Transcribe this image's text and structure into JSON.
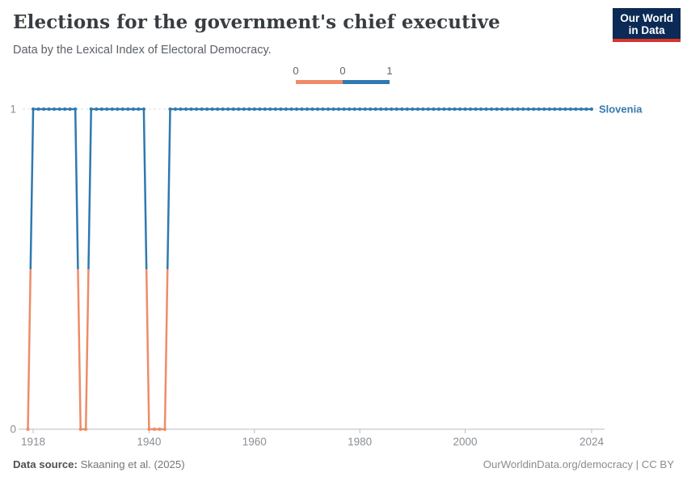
{
  "header": {
    "title": "Elections for the government's chief executive",
    "subtitle": "Data by the Lexical Index of Electoral Democracy.",
    "logo_line1": "Our World",
    "logo_line2": "in Data",
    "logo_bg": "#0b2a55",
    "logo_accent": "#d7352c"
  },
  "legend": {
    "edge_labels": [
      "0",
      "0",
      "1"
    ],
    "bin_colors": [
      "#ee8c69",
      "#2f79b0"
    ]
  },
  "chart_data": {
    "type": "line",
    "title": "Elections for the government's chief executive",
    "xlabel": "",
    "ylabel": "",
    "x_domain": [
      1916,
      2026
    ],
    "y_domain": [
      0,
      1
    ],
    "x_ticks": [
      1918,
      1940,
      1960,
      1980,
      2000,
      2024
    ],
    "y_ticks": [
      0,
      1
    ],
    "grid": "dashed line at y=1, solid axis at y=0",
    "legend_position": "top-center",
    "value_colors": {
      "0": "#ee8c69",
      "1": "#2f79b0"
    },
    "series": [
      {
        "name": "Slovenia",
        "label_color": "#3579b1",
        "segments": [
          {
            "from": 1917,
            "to": 1917,
            "value": 0
          },
          {
            "from": 1918,
            "to": 1926,
            "value": 1
          },
          {
            "from": 1927,
            "to": 1928,
            "value": 0
          },
          {
            "from": 1929,
            "to": 1939,
            "value": 1
          },
          {
            "from": 1940,
            "to": 1943,
            "value": 0
          },
          {
            "from": 1944,
            "to": 2024,
            "value": 1
          }
        ]
      }
    ],
    "axis_color": "#b7bcc0",
    "gridline_color": "#dcdfe1",
    "tick_label_color": "#8a8f94"
  },
  "footer": {
    "source_label": "Data source:",
    "source_value": "Skaaning et al. (2025)",
    "link": "OurWorldinData.org/democracy",
    "separator": " | ",
    "license": "CC BY"
  }
}
